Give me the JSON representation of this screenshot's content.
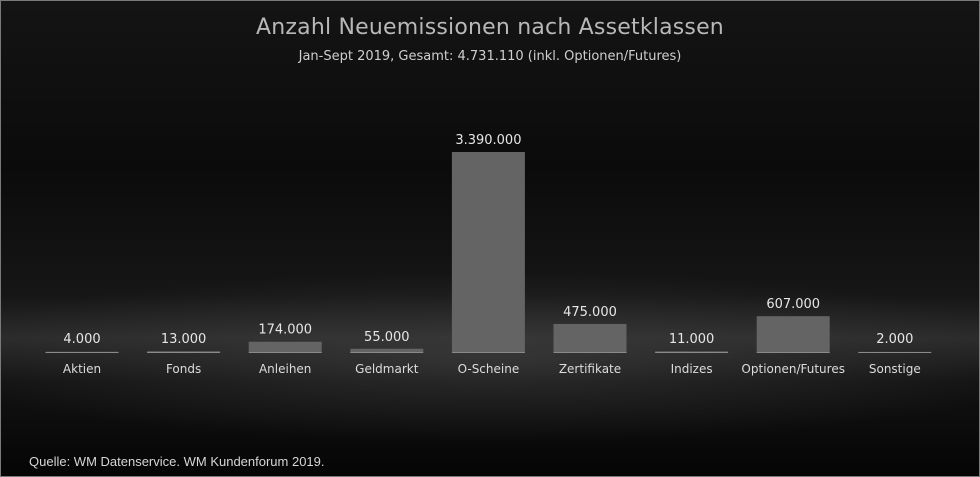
{
  "title": "Anzahl Neuemissionen nach Assetklassen",
  "subtitle": "Jan-Sept 2019, Gesamt: 4.731.110 (inkl. Optionen/Futures)",
  "source": "Quelle: WM Datenservice. WM Kundenforum 2019.",
  "colors": {
    "bar": "#646464",
    "bar_top": "#707070",
    "label": "#e6e6e6",
    "category": "#dcdcdc",
    "baseline": "#8a8a8a"
  },
  "chart_data": {
    "type": "bar",
    "title": "Anzahl Neuemissionen nach Assetklassen",
    "subtitle": "Jan-Sept 2019, Gesamt: 4.731.110 (inkl. Optionen/Futures)",
    "categories": [
      "Aktien",
      "Fonds",
      "Anleihen",
      "Geldmarkt",
      "O-Scheine",
      "Zertifikate",
      "Indizes",
      "Optionen/Futures",
      "Sonstige"
    ],
    "values": [
      4000,
      13000,
      174000,
      55000,
      3390000,
      475000,
      11000,
      607000,
      2000
    ],
    "value_labels": [
      "4.000",
      "13.000",
      "174.000",
      "55.000",
      "3.390.000",
      "475.000",
      "11.000",
      "607.000",
      "2.000"
    ],
    "ylim": [
      0,
      3390000
    ],
    "grid": false,
    "legend": "none"
  }
}
